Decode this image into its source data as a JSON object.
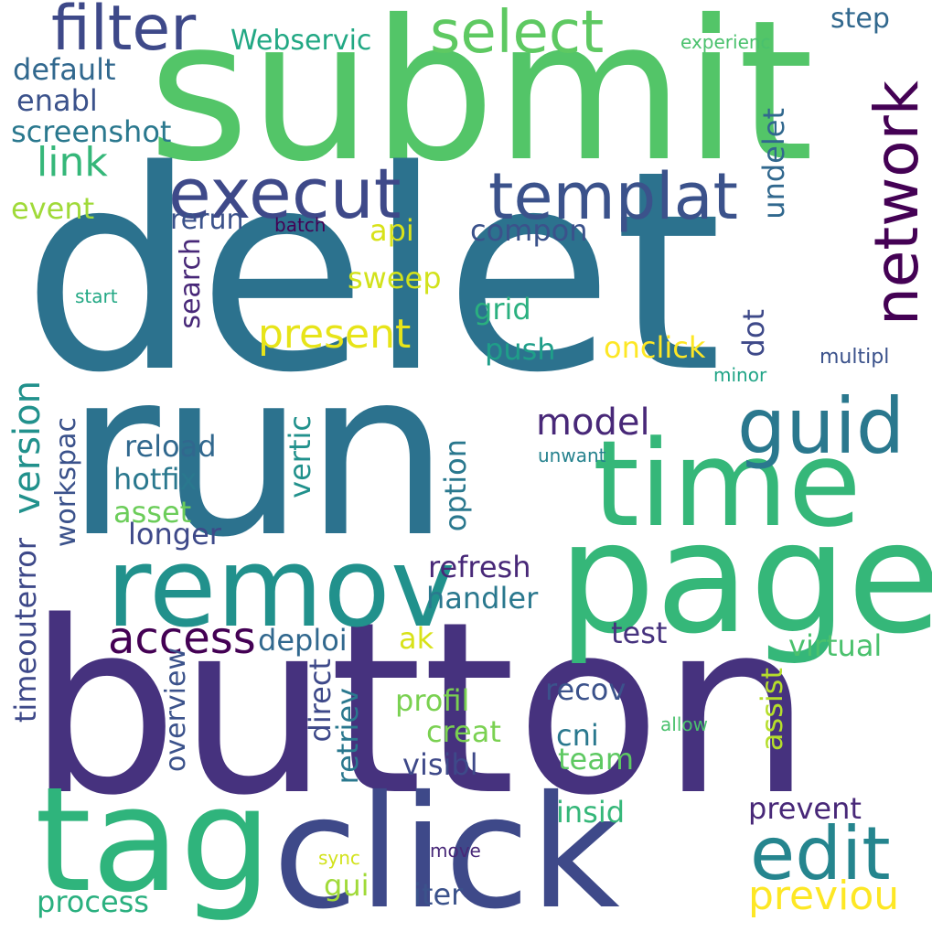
{
  "words": [
    {
      "text": "submit",
      "color": "#53c568"
    },
    {
      "text": "delet",
      "color": "#2c728e"
    },
    {
      "text": "run",
      "color": "#2c728e"
    },
    {
      "text": "button",
      "color": "#46327e"
    },
    {
      "text": "click",
      "color": "#3e4989"
    },
    {
      "text": "tag",
      "color": "#2fb47c"
    },
    {
      "text": "page",
      "color": "#35b779"
    },
    {
      "text": "time",
      "color": "#35b779"
    },
    {
      "text": "remov",
      "color": "#21918c"
    },
    {
      "text": "guid",
      "color": "#2a788e"
    },
    {
      "text": "edit",
      "color": "#25858e"
    },
    {
      "text": "network",
      "color": "#440154"
    },
    {
      "text": "execut",
      "color": "#3e4989"
    },
    {
      "text": "templat",
      "color": "#3b528b"
    },
    {
      "text": "filter",
      "color": "#3e4989"
    },
    {
      "text": "select",
      "color": "#5ec962"
    },
    {
      "text": "access",
      "color": "#440154"
    },
    {
      "text": "present",
      "color": "#e7e419"
    },
    {
      "text": "previou",
      "color": "#fde725"
    },
    {
      "text": "model",
      "color": "#482878"
    },
    {
      "text": "link",
      "color": "#35b779"
    },
    {
      "text": "Webservic",
      "color": "#22a884"
    },
    {
      "text": "step",
      "color": "#31688e"
    },
    {
      "text": "experienc",
      "color": "#4ac16d"
    },
    {
      "text": "default",
      "color": "#31688e"
    },
    {
      "text": "enabl",
      "color": "#3b528b"
    },
    {
      "text": "screenshot",
      "color": "#2a788e"
    },
    {
      "text": "event",
      "color": "#a0da39"
    },
    {
      "text": "rerun",
      "color": "#3b528b"
    },
    {
      "text": "batch",
      "color": "#440154"
    },
    {
      "text": "api",
      "color": "#d8e219"
    },
    {
      "text": "compon",
      "color": "#3b528b"
    },
    {
      "text": "undelet",
      "color": "#31688e"
    },
    {
      "text": "sweep",
      "color": "#d2e21b"
    },
    {
      "text": "search",
      "color": "#482878"
    },
    {
      "text": "start",
      "color": "#22a884"
    },
    {
      "text": "grid",
      "color": "#2ab07f"
    },
    {
      "text": "dot",
      "color": "#3e4989"
    },
    {
      "text": "push",
      "color": "#1f9e89"
    },
    {
      "text": "onclick",
      "color": "#fde725"
    },
    {
      "text": "minor",
      "color": "#20a486"
    },
    {
      "text": "multipl",
      "color": "#3b528b"
    },
    {
      "text": "version",
      "color": "#21918c"
    },
    {
      "text": "reload",
      "color": "#31688e"
    },
    {
      "text": "hotfix",
      "color": "#2a788e"
    },
    {
      "text": "vertic",
      "color": "#21918c"
    },
    {
      "text": "unwant",
      "color": "#26828e"
    },
    {
      "text": "workspac",
      "color": "#3b528b"
    },
    {
      "text": "asset",
      "color": "#6ccd5a"
    },
    {
      "text": "longer",
      "color": "#3e4989"
    },
    {
      "text": "option",
      "color": "#2a788e"
    },
    {
      "text": "refresh",
      "color": "#482878"
    },
    {
      "text": "handler",
      "color": "#2a788e"
    },
    {
      "text": "timeouterror",
      "color": "#3e4989"
    },
    {
      "text": "deploi",
      "color": "#31688e"
    },
    {
      "text": "ak",
      "color": "#d8e219"
    },
    {
      "text": "test",
      "color": "#46327e"
    },
    {
      "text": "virtual",
      "color": "#4ac16d"
    },
    {
      "text": "overview",
      "color": "#3b528b"
    },
    {
      "text": "direct",
      "color": "#3e4989"
    },
    {
      "text": "retriev",
      "color": "#2a788e"
    },
    {
      "text": "profil",
      "color": "#7ad151"
    },
    {
      "text": "recov",
      "color": "#3b528b"
    },
    {
      "text": "assist",
      "color": "#b5de2b"
    },
    {
      "text": "allow",
      "color": "#4ac16d"
    },
    {
      "text": "creat",
      "color": "#7ad151"
    },
    {
      "text": "cni",
      "color": "#2a788e"
    },
    {
      "text": "visibl",
      "color": "#3e4989"
    },
    {
      "text": "team",
      "color": "#5ec962"
    },
    {
      "text": "prevent",
      "color": "#482878"
    },
    {
      "text": "insid",
      "color": "#35b779"
    },
    {
      "text": "sync",
      "color": "#d2e21b"
    },
    {
      "text": "move",
      "color": "#482878"
    },
    {
      "text": "gui",
      "color": "#a0da39"
    },
    {
      "text": "iter",
      "color": "#3b528b"
    },
    {
      "text": "process",
      "color": "#2ab07f"
    }
  ]
}
